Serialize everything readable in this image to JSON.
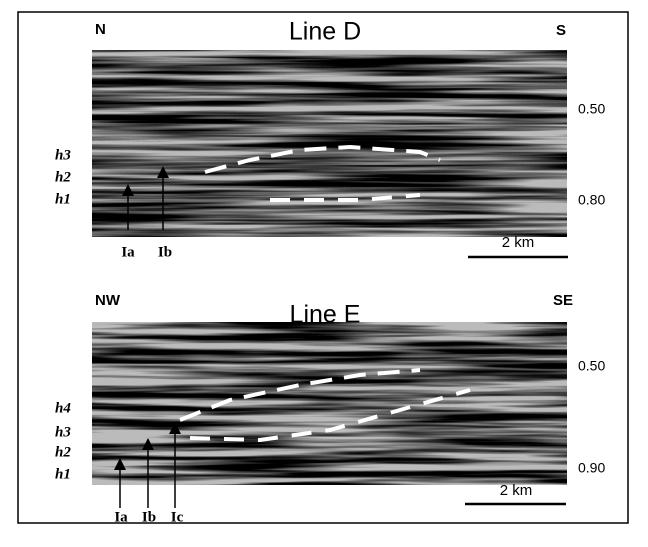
{
  "panels": [
    {
      "title": "Line D",
      "left_label": "N",
      "right_label": "S",
      "time_labels": [
        "0.50",
        "0.80"
      ],
      "horizons": [
        "h3",
        "h2",
        "h1"
      ],
      "arrows": [
        "Ia",
        "Ib"
      ],
      "scale": "2 km"
    },
    {
      "title": "Line E",
      "left_label": "NW",
      "right_label": "SE",
      "time_labels": [
        "0.50",
        "0.90"
      ],
      "horizons": [
        "h4",
        "h3",
        "h2",
        "h1"
      ],
      "arrows": [
        "Ia",
        "Ib",
        "Ic"
      ],
      "scale": "2 km"
    }
  ]
}
